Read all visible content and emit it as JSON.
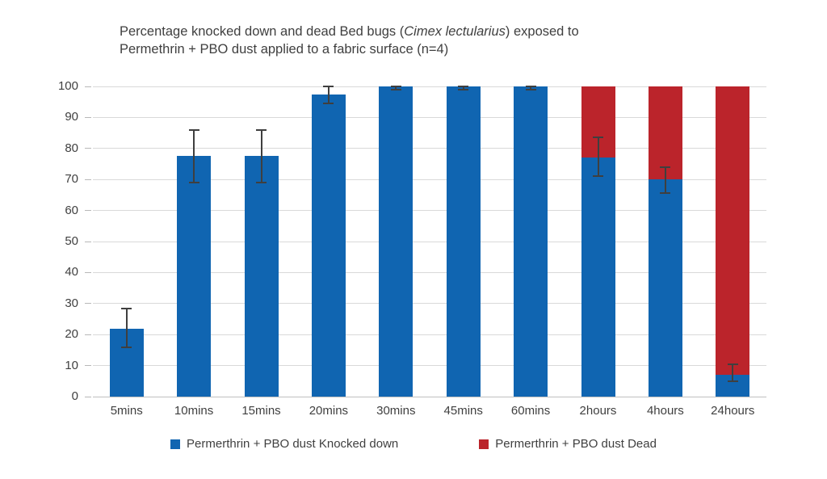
{
  "title": {
    "line1_prefix": "Percentage knocked down and dead Bed bugs (",
    "line1_italic": "Cimex lectularius",
    "line1_suffix": ") exposed to",
    "line2": "Permethrin + PBO dust applied to a fabric surface (n=4)"
  },
  "colors": {
    "knocked_down": "#1065b1",
    "dead": "#bb242b",
    "grid": "#d9d9d9",
    "axis_line": "#c0c0c0",
    "error_bar": "#3f3f3f",
    "text": "#404040"
  },
  "chart_data": {
    "type": "bar",
    "stacked": true,
    "title": "Percentage knocked down and dead Bed bugs (Cimex lectularius) exposed to Permethrin + PBO dust applied to a fabric surface (n=4)",
    "xlabel": "",
    "ylabel": "",
    "ylim": [
      0,
      100
    ],
    "ytick_step": 10,
    "yticks": [
      0,
      10,
      20,
      30,
      40,
      50,
      60,
      70,
      80,
      90,
      100
    ],
    "grid": true,
    "legend_position": "bottom",
    "categories": [
      "5mins",
      "10mins",
      "15mins",
      "20mins",
      "30mins",
      "45mins",
      "60mins",
      "2hours",
      "4hours",
      "24hours"
    ],
    "series": [
      {
        "name": "Permerthrin + PBO dust Knocked down",
        "color_key": "knocked_down",
        "values": [
          22,
          77.5,
          77.5,
          97.5,
          100,
          100,
          100,
          77,
          70,
          7
        ]
      },
      {
        "name": "Permerthrin + PBO dust Dead",
        "color_key": "dead",
        "values": [
          0,
          0,
          0,
          0,
          0,
          0,
          0,
          23,
          30,
          93
        ]
      }
    ],
    "error_bars": {
      "applies_to": "Permerthrin + PBO dust Knocked down",
      "ranges": [
        {
          "lo": 16,
          "hi": 28.5
        },
        {
          "lo": 69,
          "hi": 86
        },
        {
          "lo": 69,
          "hi": 86
        },
        {
          "lo": 94.5,
          "hi": 100
        },
        {
          "lo": 99,
          "hi": 100
        },
        {
          "lo": 99,
          "hi": 100
        },
        {
          "lo": 99,
          "hi": 100
        },
        {
          "lo": 71,
          "hi": 83.5
        },
        {
          "lo": 65.5,
          "hi": 74
        },
        {
          "lo": 5,
          "hi": 10.5
        }
      ]
    }
  }
}
